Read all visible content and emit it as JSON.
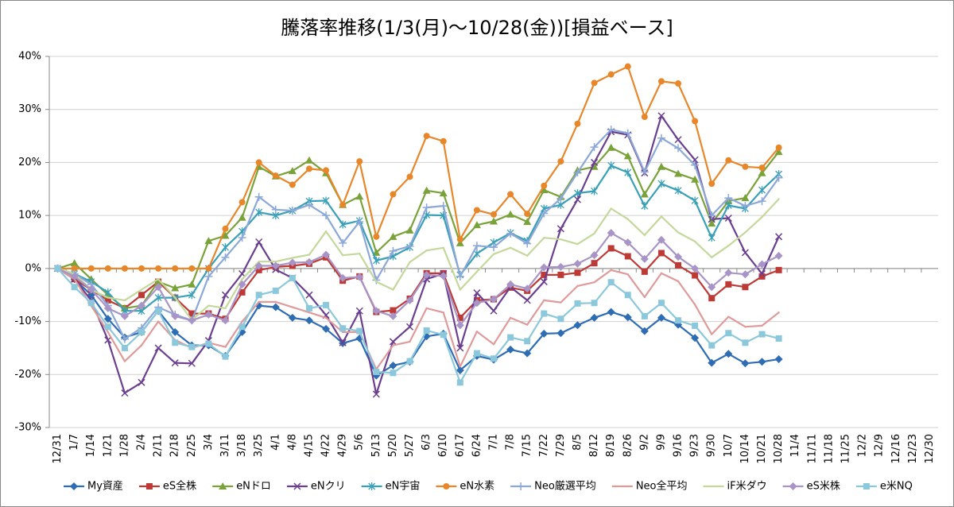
{
  "chart_data": {
    "type": "line",
    "title": "騰落率推移(1/3(月)～10/28(金))[損益ベース]",
    "categories": [
      "12/31",
      "1/7",
      "1/14",
      "1/21",
      "1/28",
      "2/4",
      "2/11",
      "2/18",
      "2/25",
      "3/4",
      "3/11",
      "3/18",
      "3/25",
      "4/1",
      "4/8",
      "4/15",
      "4/22",
      "4/29",
      "5/6",
      "5/13",
      "5/20",
      "5/27",
      "6/3",
      "6/10",
      "6/17",
      "6/24",
      "7/1",
      "7/8",
      "7/15",
      "7/22",
      "7/29",
      "8/5",
      "8/12",
      "8/19",
      "8/26",
      "9/2",
      "9/9",
      "9/16",
      "9/23",
      "9/30",
      "10/7",
      "10/14",
      "10/21",
      "10/28",
      "11/4",
      "11/11",
      "11/18",
      "11/25",
      "12/2",
      "12/9",
      "12/16",
      "12/23",
      "12/30"
    ],
    "ylim": [
      -30,
      40
    ],
    "yticks": [
      {
        "value": -30,
        "label": "-30%"
      },
      {
        "value": -20,
        "label": "-20%"
      },
      {
        "value": -10,
        "label": "-10%"
      },
      {
        "value": 0,
        "label": "0%"
      },
      {
        "value": 10,
        "label": "10%"
      },
      {
        "value": 20,
        "label": "20%"
      },
      {
        "value": 30,
        "label": "30%"
      },
      {
        "value": 40,
        "label": "40%"
      }
    ],
    "grid": true,
    "legend": "bottom",
    "series": [
      {
        "name": "My資産",
        "color": "#2e6db4",
        "marker": "diamond",
        "values": [
          0,
          -2,
          -5,
          -9.5,
          -13,
          -12,
          -8,
          -12,
          -14.5,
          -14.5,
          -16.5,
          -12,
          -7,
          -7.3,
          -9.3,
          -9.8,
          -11.4,
          -14.1,
          -13.2,
          -20.2,
          -18.3,
          -17.6,
          -12.8,
          -12.3,
          -19.2,
          -16.5,
          -17.2,
          -15.3,
          -16,
          -12.3,
          -12.2,
          -10.7,
          -9.3,
          -8.2,
          -9.2,
          -11.8,
          -9.3,
          -10.6,
          -13.1,
          -17.8,
          -16.1,
          -17.9,
          -17.6,
          -17.1,
          null,
          null,
          null,
          null,
          null,
          null,
          null,
          null,
          null
        ]
      },
      {
        "name": "eS全株",
        "color": "#be3a36",
        "marker": "square",
        "values": [
          0,
          -2,
          -4,
          -6,
          -7.5,
          -5,
          -2.5,
          -5.5,
          -8.5,
          -8.5,
          -9.5,
          -4.5,
          -0.3,
          0.3,
          0.5,
          0.9,
          2.1,
          -2.3,
          -1.5,
          -8.2,
          -7.9,
          -5.7,
          -0.9,
          -0.9,
          -9.3,
          -6,
          -5.8,
          -3.6,
          -4.2,
          -1.2,
          -1.2,
          -0.8,
          1,
          3.8,
          2.3,
          -0.6,
          2.9,
          0.6,
          -1.3,
          -5.6,
          -3,
          -3.5,
          -1.5,
          -0.3,
          null,
          null,
          null,
          null,
          null,
          null,
          null,
          null,
          null
        ]
      },
      {
        "name": "eNドロ",
        "color": "#7aa23a",
        "marker": "triangle",
        "values": [
          0,
          1,
          -2,
          -5,
          -7.5,
          -7,
          -2.5,
          -3.7,
          -3,
          5.2,
          6.2,
          9.6,
          19.2,
          17.4,
          18.4,
          20.4,
          18,
          12,
          13.6,
          3,
          6,
          7.2,
          14.7,
          14.2,
          4.8,
          8.2,
          8.9,
          10.2,
          8.8,
          14.8,
          13.5,
          18.5,
          19.2,
          22.8,
          21.2,
          14,
          19.2,
          17.9,
          16.8,
          8.5,
          12.7,
          13.3,
          18,
          22,
          null,
          null,
          null,
          null,
          null,
          null,
          null,
          null,
          null
        ]
      },
      {
        "name": "eNクリ",
        "color": "#6b3f8f",
        "marker": "x",
        "values": [
          0,
          -2,
          -6,
          -13.5,
          -23.5,
          -21.5,
          -15,
          -17.8,
          -17.9,
          -13.6,
          -5,
          -1,
          5,
          -0.2,
          -1.8,
          -5,
          -8.8,
          -14,
          -8,
          -23.7,
          -13.8,
          -11,
          -2,
          -1,
          -15,
          -4.6,
          -8,
          -3.5,
          -6,
          -2.5,
          7.5,
          13,
          20,
          25.8,
          25.2,
          18,
          28.8,
          24.3,
          20.5,
          9.3,
          9.5,
          3,
          -1,
          6,
          null,
          null,
          null,
          null,
          null,
          null,
          null,
          null,
          null
        ]
      },
      {
        "name": "eN宇宙",
        "color": "#3aa0b8",
        "marker": "star",
        "values": [
          0,
          -1,
          -2.5,
          -4.5,
          -8,
          -8,
          -5.5,
          -5.5,
          -5,
          0,
          4,
          7,
          10.6,
          10,
          10.9,
          12.7,
          12.8,
          8.3,
          9,
          1.5,
          2.3,
          4,
          10.1,
          10,
          -1.2,
          2.8,
          4.9,
          6.7,
          5.2,
          11.3,
          12,
          14.2,
          14.6,
          19.4,
          18.1,
          11.8,
          16,
          14.7,
          12.8,
          5.8,
          11.9,
          11.3,
          14.8,
          17.8,
          null,
          null,
          null,
          null,
          null,
          null,
          null,
          null,
          null
        ]
      },
      {
        "name": "eN水素",
        "color": "#e8862a",
        "marker": "circle",
        "values": [
          0,
          0,
          0,
          0,
          0,
          0,
          0,
          0,
          0,
          0,
          7.5,
          12.5,
          20,
          17.5,
          15.8,
          18.8,
          18.5,
          12,
          20.2,
          6,
          14,
          17.3,
          25,
          24,
          5.5,
          11,
          10.2,
          14,
          10.3,
          15.6,
          20.2,
          27.3,
          35,
          36.6,
          38.1,
          28.6,
          35.3,
          34.9,
          27.8,
          16,
          20.4,
          19.2,
          19,
          22.8,
          null,
          null,
          null,
          null,
          null,
          null,
          null,
          null,
          null
        ]
      },
      {
        "name": "Neo厳選平均",
        "color": "#8ca8d8",
        "marker": "plus",
        "values": [
          0,
          -1,
          -3,
          -7,
          -13.3,
          -11.2,
          -7.3,
          -8.7,
          -9.8,
          -1.5,
          2.1,
          5.8,
          13.5,
          11.1,
          10.9,
          12,
          10,
          4.8,
          8.8,
          -2.2,
          3.3,
          4.2,
          11.5,
          11.8,
          -1.5,
          4.3,
          4,
          6.6,
          4.7,
          10.4,
          13.2,
          18.1,
          22.9,
          26.2,
          25.5,
          18.2,
          24.6,
          22.7,
          19.5,
          10,
          13.3,
          11.8,
          12.7,
          17.1,
          null,
          null,
          null,
          null,
          null,
          null,
          null,
          null,
          null
        ]
      },
      {
        "name": "Neo全平均",
        "color": "#e09a9a",
        "marker": "none",
        "values": [
          0,
          -2,
          -7,
          -12,
          -17.5,
          -14.5,
          -10,
          -13.5,
          -15,
          -14,
          -14.8,
          -10,
          -6.3,
          -6.3,
          -7.3,
          -8.3,
          -9.3,
          -12,
          -12,
          -19,
          -14.5,
          -13.8,
          -7.5,
          -8.3,
          -18.5,
          -11.9,
          -14.3,
          -9.3,
          -10.6,
          -6,
          -6.4,
          -3.3,
          -2.6,
          -0.3,
          -1.1,
          -5.4,
          -0.9,
          -2.4,
          -6.8,
          -12.4,
          -9.1,
          -11,
          -10.8,
          -8.3,
          null,
          null,
          null,
          null,
          null,
          null,
          null,
          null,
          null
        ]
      },
      {
        "name": "iF米ダウ",
        "color": "#c3d89a",
        "marker": "none",
        "values": [
          0,
          -1,
          -4,
          -5.5,
          -6,
          -4,
          -2,
          -5.5,
          -9.7,
          -7,
          -7.5,
          -2,
          1.3,
          1.3,
          2,
          2.6,
          7,
          2.5,
          2.8,
          -2.5,
          -4,
          1.2,
          3.4,
          3.9,
          -4,
          -0.6,
          2.7,
          3.9,
          2.4,
          5.8,
          5.5,
          4.6,
          6.6,
          11.3,
          9.3,
          6.3,
          9.8,
          6.8,
          5.1,
          2.1,
          4.3,
          6.8,
          9.7,
          13.1,
          null,
          null,
          null,
          null,
          null,
          null,
          null,
          null,
          null
        ]
      },
      {
        "name": "eS米株",
        "color": "#a894c7",
        "marker": "diamond",
        "values": [
          0,
          -1.5,
          -4,
          -7.5,
          -9,
          -7,
          -3.5,
          -9,
          -9.8,
          -8.7,
          -9.8,
          -3,
          0.5,
          0.5,
          1.1,
          1.2,
          2.6,
          -1.8,
          -1.6,
          -8,
          -9,
          -6,
          -1.2,
          -1.4,
          -10.7,
          -6.5,
          -5.8,
          -3,
          -3.8,
          0.2,
          0.3,
          0.9,
          2.5,
          6.7,
          4.9,
          1.8,
          5.4,
          2.2,
          0,
          -3.5,
          -0.8,
          -1.1,
          0.8,
          2.4,
          null,
          null,
          null,
          null,
          null,
          null,
          null,
          null,
          null
        ]
      },
      {
        "name": "e米NQ",
        "color": "#8cc8dc",
        "marker": "square",
        "values": [
          0,
          -3.5,
          -6.5,
          -11,
          -15,
          -12,
          -8,
          -14,
          -14.8,
          -14.2,
          -16.6,
          -11,
          -5,
          -4.2,
          -1.8,
          -7.5,
          -6.9,
          -11.3,
          -11.8,
          -19.5,
          -19.7,
          -17.5,
          -11.7,
          -12.5,
          -21.5,
          -16,
          -17,
          -13,
          -13.7,
          -8.5,
          -9.5,
          -6.6,
          -6.5,
          -2.6,
          -5,
          -9,
          -6.5,
          -9.8,
          -10.8,
          -14.5,
          -12.2,
          -14,
          -12.4,
          -13.2,
          null,
          null,
          null,
          null,
          null,
          null,
          null,
          null,
          null
        ]
      }
    ]
  }
}
